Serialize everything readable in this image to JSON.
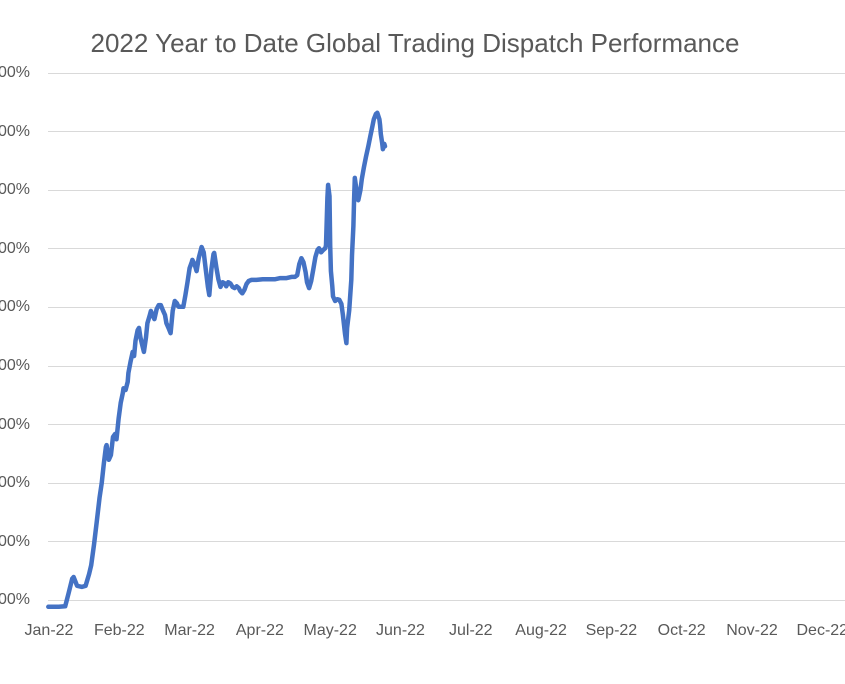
{
  "chart_data": {
    "type": "line",
    "title": "2022 Year to Date Global Trading Dispatch Performance",
    "title_color": "#595959",
    "axis_label_color": "#595959",
    "gridline_color": "#d9d9d9",
    "background_color": "#ffffff",
    "line_color": "#4472c4",
    "line_width": 4.5,
    "grid": "horizontal gridlines only, chart cropped at left and right edges",
    "legend": "none",
    "x_tick_labels": [
      "Jan-22",
      "Feb-22",
      "Mar-22",
      "Apr-22",
      "May-22",
      "Jun-22",
      "Jul-22",
      "Aug-22",
      "Sep-22",
      "Oct-22",
      "Nov-22",
      "Dec-22"
    ],
    "y_tick_labels_visible": [
      "00%",
      "00%",
      "00%",
      "00%",
      "00%",
      "00%",
      "00%",
      "00%",
      "00%",
      "00%"
    ],
    "ylim": [
      0,
      900
    ],
    "y_gridline_step": 100,
    "x_unit": "months after Jan-22 tick",
    "y_unit": "percent (estimated from gridline spacing; labels truncated offscreen)",
    "series": [
      {
        "points": [
          [
            -0.01,
            -11
          ],
          [
            0.14,
            -11
          ],
          [
            0.23,
            -10
          ],
          [
            0.28,
            13
          ],
          [
            0.33,
            37
          ],
          [
            0.35,
            40
          ],
          [
            0.4,
            25
          ],
          [
            0.47,
            23
          ],
          [
            0.52,
            25
          ],
          [
            0.57,
            45
          ],
          [
            0.6,
            60
          ],
          [
            0.64,
            95
          ],
          [
            0.68,
            135
          ],
          [
            0.72,
            176
          ],
          [
            0.75,
            200
          ],
          [
            0.78,
            233
          ],
          [
            0.81,
            262
          ],
          [
            0.82,
            265
          ],
          [
            0.85,
            240
          ],
          [
            0.88,
            248
          ],
          [
            0.91,
            279
          ],
          [
            0.94,
            284
          ],
          [
            0.96,
            275
          ],
          [
            0.99,
            310
          ],
          [
            1.02,
            337
          ],
          [
            1.05,
            354
          ],
          [
            1.06,
            362
          ],
          [
            1.09,
            359
          ],
          [
            1.12,
            373
          ],
          [
            1.13,
            388
          ],
          [
            1.16,
            407
          ],
          [
            1.19,
            424
          ],
          [
            1.21,
            417
          ],
          [
            1.23,
            443
          ],
          [
            1.26,
            461
          ],
          [
            1.28,
            465
          ],
          [
            1.3,
            449
          ],
          [
            1.33,
            434
          ],
          [
            1.35,
            424
          ],
          [
            1.38,
            449
          ],
          [
            1.4,
            473
          ],
          [
            1.43,
            485
          ],
          [
            1.45,
            494
          ],
          [
            1.48,
            485
          ],
          [
            1.5,
            480
          ],
          [
            1.53,
            497
          ],
          [
            1.56,
            504
          ],
          [
            1.59,
            504
          ],
          [
            1.62,
            495
          ],
          [
            1.65,
            487
          ],
          [
            1.67,
            473
          ],
          [
            1.7,
            465
          ],
          [
            1.73,
            456
          ],
          [
            1.76,
            494
          ],
          [
            1.79,
            511
          ],
          [
            1.82,
            507
          ],
          [
            1.84,
            501
          ],
          [
            1.89,
            501
          ],
          [
            1.91,
            501
          ],
          [
            1.94,
            521
          ],
          [
            1.97,
            543
          ],
          [
            2.0,
            567
          ],
          [
            2.03,
            577
          ],
          [
            2.04,
            581
          ],
          [
            2.07,
            574
          ],
          [
            2.1,
            562
          ],
          [
            2.13,
            584
          ],
          [
            2.16,
            598
          ],
          [
            2.17,
            603
          ],
          [
            2.2,
            594
          ],
          [
            2.23,
            564
          ],
          [
            2.26,
            535
          ],
          [
            2.28,
            521
          ],
          [
            2.31,
            565
          ],
          [
            2.34,
            591
          ],
          [
            2.35,
            593
          ],
          [
            2.38,
            569
          ],
          [
            2.41,
            548
          ],
          [
            2.44,
            535
          ],
          [
            2.47,
            543
          ],
          [
            2.5,
            541
          ],
          [
            2.52,
            536
          ],
          [
            2.55,
            543
          ],
          [
            2.58,
            541
          ],
          [
            2.61,
            535
          ],
          [
            2.64,
            533
          ],
          [
            2.67,
            536
          ],
          [
            2.7,
            533
          ],
          [
            2.72,
            528
          ],
          [
            2.75,
            524
          ],
          [
            2.78,
            530
          ],
          [
            2.81,
            540
          ],
          [
            2.84,
            545
          ],
          [
            2.88,
            547
          ],
          [
            2.95,
            547
          ],
          [
            3.04,
            548
          ],
          [
            3.12,
            548
          ],
          [
            3.21,
            548
          ],
          [
            3.29,
            550
          ],
          [
            3.38,
            550
          ],
          [
            3.45,
            552
          ],
          [
            3.5,
            552
          ],
          [
            3.53,
            555
          ],
          [
            3.56,
            574
          ],
          [
            3.59,
            584
          ],
          [
            3.62,
            577
          ],
          [
            3.65,
            560
          ],
          [
            3.67,
            543
          ],
          [
            3.7,
            533
          ],
          [
            3.73,
            545
          ],
          [
            3.76,
            565
          ],
          [
            3.79,
            586
          ],
          [
            3.82,
            598
          ],
          [
            3.84,
            601
          ],
          [
            3.87,
            594
          ],
          [
            3.9,
            598
          ],
          [
            3.93,
            601
          ],
          [
            3.94,
            606
          ],
          [
            3.96,
            687
          ],
          [
            3.97,
            709
          ],
          [
            3.99,
            690
          ],
          [
            4.0,
            605
          ],
          [
            4.01,
            562
          ],
          [
            4.03,
            536
          ],
          [
            4.04,
            519
          ],
          [
            4.07,
            511
          ],
          [
            4.1,
            514
          ],
          [
            4.13,
            513
          ],
          [
            4.16,
            506
          ],
          [
            4.18,
            487
          ],
          [
            4.21,
            455
          ],
          [
            4.23,
            439
          ],
          [
            4.24,
            465
          ],
          [
            4.27,
            495
          ],
          [
            4.3,
            547
          ],
          [
            4.31,
            589
          ],
          [
            4.33,
            639
          ],
          [
            4.34,
            685
          ],
          [
            4.35,
            721
          ],
          [
            4.37,
            704
          ],
          [
            4.38,
            690
          ],
          [
            4.4,
            683
          ],
          [
            4.43,
            700
          ],
          [
            4.45,
            719
          ],
          [
            4.48,
            739
          ],
          [
            4.51,
            758
          ],
          [
            4.54,
            774
          ],
          [
            4.57,
            792
          ],
          [
            4.6,
            809
          ],
          [
            4.62,
            821
          ],
          [
            4.65,
            830
          ],
          [
            4.67,
            832
          ],
          [
            4.7,
            821
          ],
          [
            4.71,
            811
          ],
          [
            4.72,
            796
          ],
          [
            4.74,
            780
          ],
          [
            4.75,
            770
          ],
          [
            4.77,
            779
          ],
          [
            4.78,
            775
          ]
        ]
      }
    ]
  }
}
